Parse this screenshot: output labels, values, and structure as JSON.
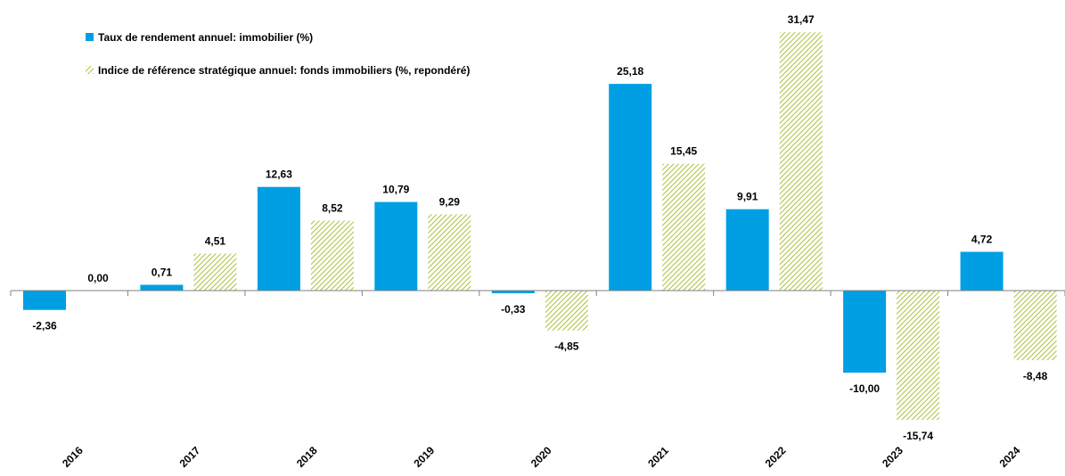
{
  "chart_data": {
    "type": "bar",
    "categories": [
      "2016",
      "2017",
      "2018",
      "2019",
      "2020",
      "2021",
      "2022",
      "2023",
      "2024"
    ],
    "series": [
      {
        "name": "Taux de rendement annuel: immobilier (%)",
        "values": [
          -2.36,
          0.71,
          12.63,
          10.79,
          -0.33,
          25.18,
          9.91,
          -10.0,
          4.72
        ],
        "labels": [
          "-2,36",
          "0,71",
          "12,63",
          "10,79",
          "-0,33",
          "25,18",
          "9,91",
          "-10,00",
          "4,72"
        ],
        "color": "#009fe3",
        "pattern": "solid"
      },
      {
        "name": "Indice de référence stratégique annuel: fonds immobiliers (%, repondéré)",
        "values": [
          0.0,
          4.51,
          8.52,
          9.29,
          -4.85,
          15.45,
          31.47,
          -15.74,
          -8.48
        ],
        "labels": [
          "0,00",
          "4,51",
          "8,52",
          "9,29",
          "-4,85",
          "15,45",
          "31,47",
          "-15,74",
          "-8,48"
        ],
        "color": "#a8c23a",
        "pattern": "diagonal-hatch"
      }
    ],
    "legend_position": "top-left",
    "grid": false
  }
}
